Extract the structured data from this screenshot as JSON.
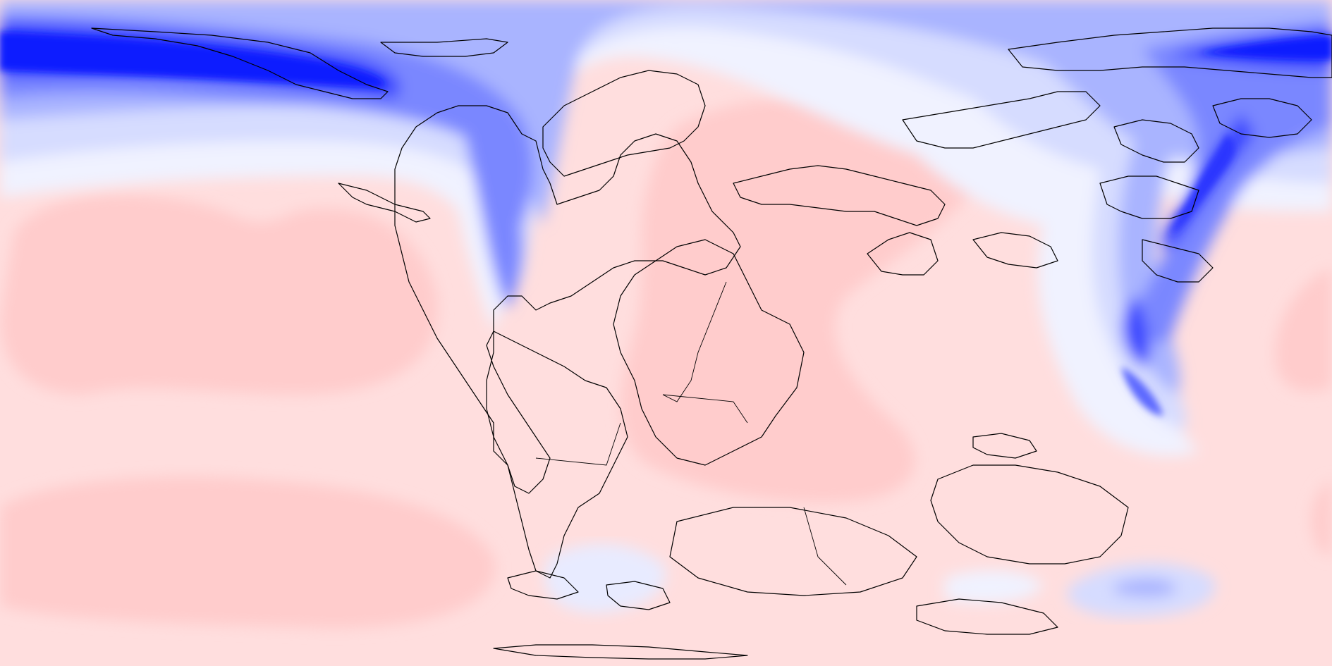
{
  "map": {
    "kind": "paleogeographic anomaly field",
    "projection": "equirectangular",
    "colors": {
      "background": "#ffdede",
      "warm_light": "#ffe6e6",
      "warm": "#ffcccc",
      "neutral": "#fff4f4",
      "cool_pale": "#f0f2ff",
      "cool_light": "#d6dcff",
      "cool": "#a9b4ff",
      "cool_strong": "#7a87ff",
      "cool_deep": "#3a46ff",
      "cool_max": "#0f1aff",
      "coastline": "#000000"
    },
    "features": [
      "north-pacific-cold-band",
      "western-america-cold-tongue",
      "east-asia-cold-band",
      "south-pacific-warm-cell",
      "north-pacific-warm-cell",
      "tethys-warm-region",
      "antarctic-cold-patch"
    ]
  }
}
